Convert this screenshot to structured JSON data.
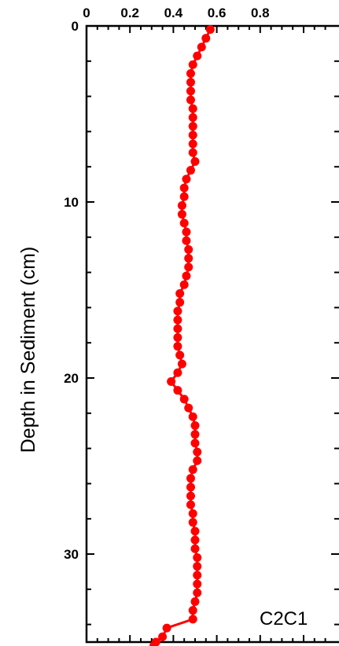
{
  "chart_data": {
    "type": "line",
    "title": "",
    "xlabel": "",
    "ylabel": "Depth in Sediment (cm)",
    "panel_label": "C2C1",
    "xlim": [
      0,
      1.3
    ],
    "ylim": [
      35,
      0
    ],
    "y_inverted": true,
    "x_ticks_labeled": [
      0,
      0.2,
      0.4,
      0.6,
      0.8
    ],
    "x_tick_labels": [
      "0",
      "0.2",
      "0.4",
      "0.6",
      "0.8"
    ],
    "y_ticks_labeled": [
      0,
      10,
      20,
      30
    ],
    "y_tick_labels": [
      "0",
      "10",
      "20",
      "30"
    ],
    "x_axis_position": "top",
    "grid": false,
    "marker": "circle",
    "colors": {
      "series": "#ff0000",
      "axes": "#000000",
      "background": "#ffffff"
    },
    "series": [
      {
        "x": [
          0.57,
          0.55,
          0.53,
          0.51,
          0.49,
          0.48,
          0.48,
          0.48,
          0.48,
          0.49,
          0.49,
          0.49,
          0.49,
          0.49,
          0.49,
          0.5,
          0.48,
          0.46,
          0.45,
          0.45,
          0.44,
          0.44,
          0.45,
          0.46,
          0.46,
          0.47,
          0.47,
          0.47,
          0.46,
          0.45,
          0.43,
          0.43,
          0.42,
          0.42,
          0.42,
          0.42,
          0.42,
          0.43,
          0.44,
          0.42,
          0.39,
          0.42,
          0.45,
          0.47,
          0.49,
          0.5,
          0.5,
          0.5,
          0.51,
          0.51,
          0.49,
          0.48,
          0.48,
          0.48,
          0.48,
          0.49,
          0.49,
          0.5,
          0.5,
          0.5,
          0.51,
          0.51,
          0.51,
          0.51,
          0.51,
          0.5,
          0.49,
          0.49,
          0.37,
          0.35,
          0.32,
          0.31
        ],
        "y": [
          0.2,
          0.7,
          1.2,
          1.7,
          2.2,
          2.7,
          3.2,
          3.7,
          4.2,
          4.7,
          5.2,
          5.7,
          6.2,
          6.7,
          7.2,
          7.7,
          8.2,
          8.7,
          9.2,
          9.7,
          10.2,
          10.7,
          11.2,
          11.7,
          12.2,
          12.7,
          13.2,
          13.7,
          14.2,
          14.7,
          15.2,
          15.7,
          16.2,
          16.7,
          17.2,
          17.7,
          18.2,
          18.7,
          19.2,
          19.7,
          20.2,
          20.7,
          21.2,
          21.7,
          22.2,
          22.7,
          23.2,
          23.7,
          24.2,
          24.7,
          25.2,
          25.7,
          26.2,
          26.7,
          27.2,
          27.7,
          28.2,
          28.7,
          29.2,
          29.7,
          30.2,
          30.7,
          31.2,
          31.7,
          32.2,
          32.7,
          33.2,
          33.7,
          34.2,
          34.7,
          35.0,
          35.2
        ]
      }
    ]
  }
}
